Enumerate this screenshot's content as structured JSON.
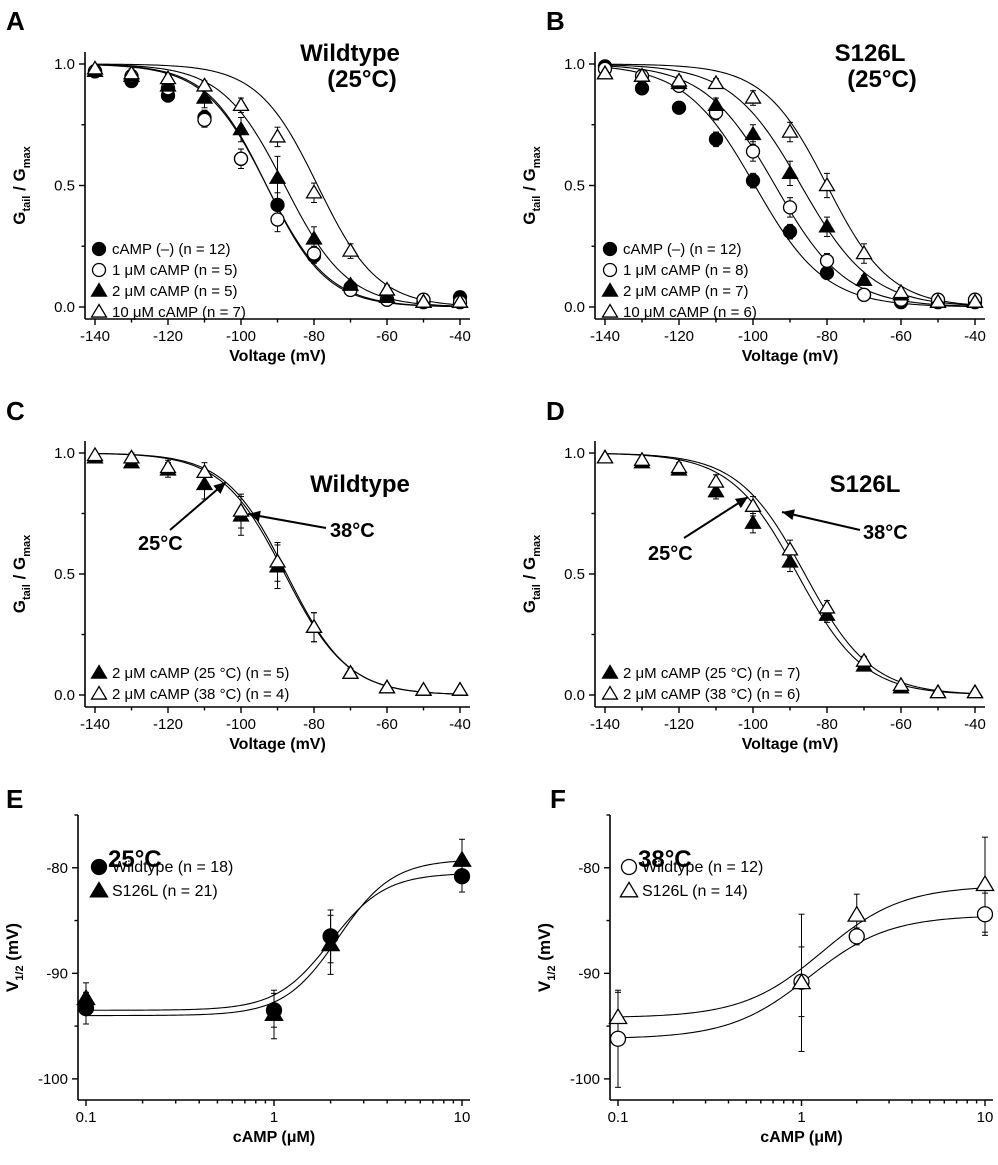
{
  "chart_data": [
    {
      "id": "A",
      "type": "scatter",
      "panel_letter": "A",
      "title": "Wildtype",
      "subtitle": "(25°C)",
      "xlabel": "Voltage (mV)",
      "ylabel": "G_tail / G_max",
      "xlim": [
        -140,
        -40
      ],
      "ylim": [
        0,
        1
      ],
      "xticks": [
        -140,
        -120,
        -100,
        -80,
        -60,
        -40
      ],
      "yticks": [
        0.0,
        0.5,
        1.0
      ],
      "ytick_labels": [
        "0.0",
        "0.5",
        "1.0"
      ],
      "legend_position": "bottom-left",
      "x": [
        -140,
        -130,
        -120,
        -110,
        -100,
        -90,
        -80,
        -70,
        -60,
        -50,
        -40
      ],
      "series": [
        {
          "name": "cAMP (–) (n = 12)",
          "marker": "circle-filled",
          "fit_v_half": -93,
          "fit_k": 8.5,
          "values": [
            0.97,
            0.93,
            0.87,
            0.78,
            0.61,
            0.42,
            0.21,
            0.08,
            0.03,
            0.02,
            0.04
          ],
          "errors": [
            0.01,
            0.02,
            0.02,
            0.03,
            0.04,
            0.05,
            0.03,
            0.02,
            0.01,
            0.01,
            0.01
          ]
        },
        {
          "name": "1 μM cAMP (n = 5)",
          "marker": "circle-open",
          "fit_v_half": -93,
          "fit_k": 8.2,
          "values": [
            0.97,
            0.95,
            0.9,
            0.77,
            0.61,
            0.36,
            0.22,
            0.07,
            0.03,
            0.03,
            0.02
          ],
          "errors": [
            0.01,
            0.02,
            0.02,
            0.03,
            0.04,
            0.05,
            0.03,
            0.02,
            0.01,
            0.01,
            0.01
          ]
        },
        {
          "name": "2 μM cAMP (n = 5)",
          "marker": "triangle-filled",
          "fit_v_half": -88,
          "fit_k": 8.6,
          "values": [
            0.97,
            0.95,
            0.91,
            0.86,
            0.73,
            0.53,
            0.28,
            0.09,
            0.04,
            0.02,
            0.02
          ],
          "errors": [
            0.01,
            0.02,
            0.03,
            0.04,
            0.05,
            0.09,
            0.05,
            0.02,
            0.01,
            0.01,
            0.01
          ]
        },
        {
          "name": "10 μM cAMP (n = 7)",
          "marker": "triangle-open",
          "fit_v_half": -79,
          "fit_k": 8.2,
          "values": [
            0.98,
            0.96,
            0.94,
            0.91,
            0.83,
            0.7,
            0.47,
            0.23,
            0.07,
            0.02,
            0.02
          ],
          "errors": [
            0.01,
            0.02,
            0.02,
            0.02,
            0.03,
            0.04,
            0.04,
            0.03,
            0.02,
            0.01,
            0.01
          ]
        }
      ]
    },
    {
      "id": "B",
      "type": "scatter",
      "panel_letter": "B",
      "title": "S126L",
      "subtitle": "(25°C)",
      "xlabel": "Voltage (mV)",
      "ylabel": "G_tail / G_max",
      "xlim": [
        -140,
        -40
      ],
      "ylim": [
        0,
        1
      ],
      "xticks": [
        -140,
        -120,
        -100,
        -80,
        -60,
        -40
      ],
      "yticks": [
        0.0,
        0.5,
        1.0
      ],
      "ytick_labels": [
        "0.0",
        "0.5",
        "1.0"
      ],
      "legend_position": "bottom-left",
      "x": [
        -140,
        -130,
        -120,
        -110,
        -100,
        -90,
        -80,
        -70,
        -60,
        -50,
        -40
      ],
      "series": [
        {
          "name": "cAMP (–) (n = 12)",
          "marker": "circle-filled",
          "fit_v_half": -99.5,
          "fit_k": 9.5,
          "values": [
            0.99,
            0.9,
            0.82,
            0.69,
            0.52,
            0.31,
            0.14,
            0.05,
            0.02,
            0.02,
            0.02
          ],
          "errors": [
            0.01,
            0.02,
            0.02,
            0.03,
            0.03,
            0.03,
            0.02,
            0.02,
            0.01,
            0.01,
            0.01
          ]
        },
        {
          "name": "1 μM cAMP (n = 8)",
          "marker": "circle-open",
          "fit_v_half": -94,
          "fit_k": 9.5,
          "values": [
            0.98,
            0.95,
            0.91,
            0.8,
            0.64,
            0.41,
            0.19,
            0.05,
            0.03,
            0.03,
            0.03
          ],
          "errors": [
            0.01,
            0.02,
            0.02,
            0.03,
            0.04,
            0.04,
            0.03,
            0.02,
            0.01,
            0.01,
            0.01
          ]
        },
        {
          "name": "2 μM cAMP (n = 7)",
          "marker": "triangle-filled",
          "fit_v_half": -87,
          "fit_k": 9.5,
          "values": [
            0.96,
            0.95,
            0.92,
            0.83,
            0.71,
            0.55,
            0.33,
            0.11,
            0.05,
            0.02,
            0.02
          ],
          "errors": [
            0.01,
            0.02,
            0.02,
            0.03,
            0.04,
            0.05,
            0.04,
            0.02,
            0.01,
            0.01,
            0.01
          ]
        },
        {
          "name": "10 μM cAMP (n = 6)",
          "marker": "triangle-open",
          "fit_v_half": -80,
          "fit_k": 8.5,
          "values": [
            0.96,
            0.95,
            0.93,
            0.92,
            0.86,
            0.72,
            0.5,
            0.22,
            0.06,
            0.02,
            0.02
          ],
          "errors": [
            0.01,
            0.02,
            0.02,
            0.02,
            0.03,
            0.04,
            0.05,
            0.04,
            0.02,
            0.01,
            0.01
          ]
        }
      ]
    },
    {
      "id": "C",
      "type": "scatter",
      "panel_letter": "C",
      "title": "Wildtype",
      "subtitle": "",
      "xlabel": "Voltage (mV)",
      "ylabel": "G_tail / G_max",
      "xlim": [
        -140,
        -40
      ],
      "ylim": [
        0,
        1
      ],
      "xticks": [
        -140,
        -120,
        -100,
        -80,
        -60,
        -40
      ],
      "yticks": [
        0.0,
        0.5,
        1.0
      ],
      "ytick_labels": [
        "0.0",
        "0.5",
        "1.0"
      ],
      "legend_position": "bottom-left",
      "annotations": [
        "25°C",
        "38°C"
      ],
      "x": [
        -140,
        -130,
        -120,
        -110,
        -100,
        -90,
        -80,
        -70,
        -60,
        -50,
        -40
      ],
      "series": [
        {
          "name": "2 μM cAMP (25 °C) (n = 5)",
          "marker": "triangle-filled",
          "fit_v_half": -88,
          "fit_k": 8.6,
          "values": [
            0.98,
            0.96,
            0.93,
            0.87,
            0.74,
            0.53,
            0.28,
            0.09,
            0.03,
            0.02,
            0.02
          ],
          "errors": [
            0.01,
            0.02,
            0.03,
            0.06,
            0.08,
            0.09,
            0.06,
            0.02,
            0.01,
            0.01,
            0.01
          ]
        },
        {
          "name": "2 μM cAMP (38 °C) (n = 4)",
          "marker": "triangle-open",
          "fit_v_half": -87.5,
          "fit_k": 8.4,
          "values": [
            0.99,
            0.98,
            0.94,
            0.92,
            0.76,
            0.55,
            0.28,
            0.09,
            0.03,
            0.02,
            0.02
          ],
          "errors": [
            0.01,
            0.02,
            0.03,
            0.04,
            0.07,
            0.08,
            0.06,
            0.02,
            0.01,
            0.01,
            0.01
          ]
        }
      ]
    },
    {
      "id": "D",
      "type": "scatter",
      "panel_letter": "D",
      "title": "S126L",
      "subtitle": "",
      "xlabel": "Voltage (mV)",
      "ylabel": "G_tail / G_max",
      "xlim": [
        -140,
        -40
      ],
      "ylim": [
        0,
        1
      ],
      "xticks": [
        -140,
        -120,
        -100,
        -80,
        -60,
        -40
      ],
      "yticks": [
        0.0,
        0.5,
        1.0
      ],
      "ytick_labels": [
        "0.0",
        "0.5",
        "1.0"
      ],
      "legend_position": "bottom-left",
      "annotations": [
        "25°C",
        "38°C"
      ],
      "x": [
        -140,
        -130,
        -120,
        -110,
        -100,
        -90,
        -80,
        -70,
        -60,
        -50,
        -40
      ],
      "series": [
        {
          "name": "2 μM cAMP (25 °C) (n = 7)",
          "marker": "triangle-filled",
          "fit_v_half": -88,
          "fit_k": 9.0,
          "values": [
            0.98,
            0.96,
            0.93,
            0.84,
            0.71,
            0.55,
            0.33,
            0.12,
            0.03,
            0.01,
            0.01
          ],
          "errors": [
            0.01,
            0.01,
            0.02,
            0.03,
            0.04,
            0.04,
            0.03,
            0.02,
            0.01,
            0.01,
            0.01
          ]
        },
        {
          "name": "2 μM cAMP (38 °C) (n = 6)",
          "marker": "triangle-open",
          "fit_v_half": -86,
          "fit_k": 9.0,
          "values": [
            0.98,
            0.97,
            0.94,
            0.88,
            0.78,
            0.6,
            0.36,
            0.14,
            0.04,
            0.01,
            0.01
          ],
          "errors": [
            0.01,
            0.01,
            0.02,
            0.03,
            0.04,
            0.04,
            0.03,
            0.02,
            0.01,
            0.01,
            0.01
          ]
        }
      ]
    },
    {
      "id": "E",
      "type": "scatter",
      "panel_letter": "E",
      "title": "25°C",
      "subtitle": "",
      "xlabel": "cAMP (μM)",
      "ylabel": "V_1/2 (mV)",
      "x_scale": "log",
      "xlim": [
        0.1,
        10
      ],
      "ylim": [
        -102,
        -75
      ],
      "xticks": [
        0.1,
        1,
        10
      ],
      "xtick_labels": [
        "0.1",
        "1",
        "10"
      ],
      "yticks": [
        -100,
        -90,
        -80
      ],
      "ytick_labels": [
        "-100",
        "-90",
        "-80"
      ],
      "legend_position": "top-left",
      "x": [
        0.1,
        1,
        2,
        10
      ],
      "series": [
        {
          "name": "Wildtype (n = 18)",
          "marker": "circle-filled",
          "fit_bottom": -93.5,
          "fit_top": -80.5,
          "fit_ec50": 2.0,
          "fit_hill": 3.0,
          "values": [
            -93.3,
            -93.5,
            -86.5,
            -80.8
          ],
          "errors": [
            1.5,
            1.6,
            2.5,
            1.5
          ]
        },
        {
          "name": "S126L (n = 21)",
          "marker": "triangle-filled",
          "fit_bottom": -94.0,
          "fit_top": -79.2,
          "fit_ec50": 2.2,
          "fit_hill": 3.0,
          "values": [
            -92.4,
            -93.9,
            -87.3,
            -79.3
          ],
          "errors": [
            1.5,
            2.3,
            2.8,
            2.0
          ]
        }
      ]
    },
    {
      "id": "F",
      "type": "scatter",
      "panel_letter": "F",
      "title": "38°C",
      "subtitle": "",
      "xlabel": "cAMP (μM)",
      "ylabel": "V_1/2 (mV)",
      "x_scale": "log",
      "xlim": [
        0.1,
        10
      ],
      "ylim": [
        -102,
        -75
      ],
      "xticks": [
        0.1,
        1,
        10
      ],
      "xtick_labels": [
        "0.1",
        "1",
        "10"
      ],
      "yticks": [
        -100,
        -90,
        -80
      ],
      "ytick_labels": [
        "-100",
        "-90",
        "-80"
      ],
      "legend_position": "top-left",
      "x": [
        0.1,
        1,
        2,
        10
      ],
      "series": [
        {
          "name": "Wildtype (n = 12)",
          "marker": "circle-open",
          "fit_bottom": -96.2,
          "fit_top": -84.5,
          "fit_ec50": 1.1,
          "fit_hill": 2.0,
          "values": [
            -96.2,
            -90.8,
            -86.5,
            -84.4
          ],
          "errors": [
            4.6,
            3.3,
            0.8,
            2.0
          ]
        },
        {
          "name": "S126L (n = 14)",
          "marker": "triangle-open",
          "fit_bottom": -94.2,
          "fit_top": -81.7,
          "fit_ec50": 1.3,
          "fit_hill": 2.0,
          "values": [
            -94.2,
            -90.9,
            -84.5,
            -81.6
          ],
          "errors": [
            2.4,
            6.5,
            2.0,
            4.5
          ]
        }
      ]
    }
  ]
}
